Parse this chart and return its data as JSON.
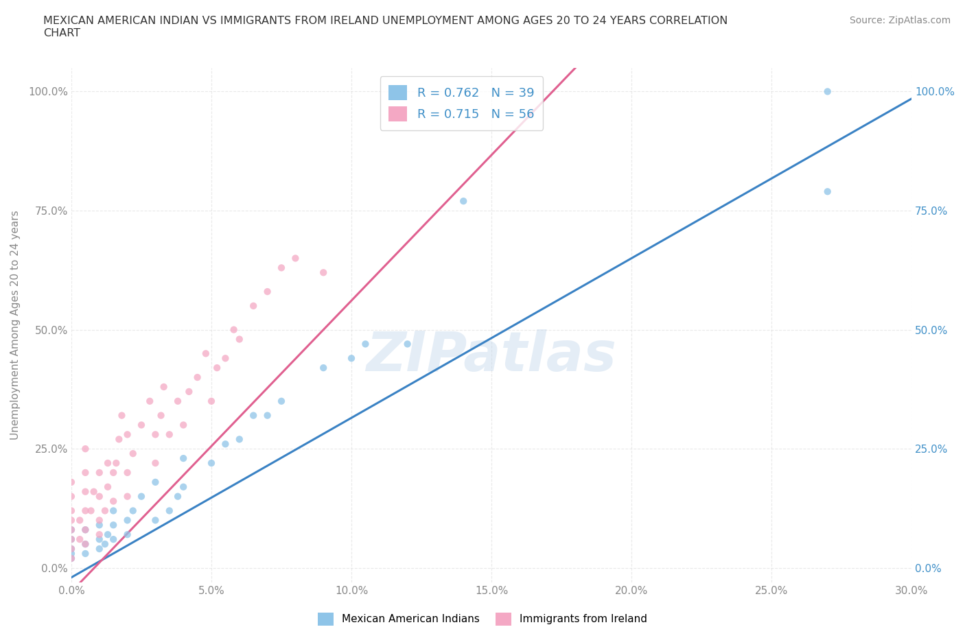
{
  "title": "MEXICAN AMERICAN INDIAN VS IMMIGRANTS FROM IRELAND UNEMPLOYMENT AMONG AGES 20 TO 24 YEARS CORRELATION\nCHART",
  "source": "Source: ZipAtlas.com",
  "ylabel": "Unemployment Among Ages 20 to 24 years",
  "xlim": [
    0.0,
    0.3
  ],
  "ylim": [
    -0.03,
    1.05
  ],
  "xtick_labels": [
    "0.0%",
    "5.0%",
    "10.0%",
    "15.0%",
    "20.0%",
    "25.0%",
    "30.0%"
  ],
  "xtick_vals": [
    0.0,
    0.05,
    0.1,
    0.15,
    0.2,
    0.25,
    0.3
  ],
  "ytick_labels": [
    "0.0%",
    "25.0%",
    "50.0%",
    "75.0%",
    "100.0%"
  ],
  "ytick_vals": [
    0.0,
    0.25,
    0.5,
    0.75,
    1.0
  ],
  "right_ytick_labels": [
    "0.0%",
    "25.0%",
    "50.0%",
    "75.0%",
    "100.0%"
  ],
  "right_ytick_vals": [
    0.0,
    0.25,
    0.5,
    0.75,
    1.0
  ],
  "legend_R1": "R = 0.762",
  "legend_N1": "N = 39",
  "legend_R2": "R = 0.715",
  "legend_N2": "N = 56",
  "color_blue": "#8ec4e8",
  "color_pink": "#f4a8c4",
  "line_blue": "#3a82c4",
  "line_pink": "#e06090",
  "watermark": "ZIPatlas",
  "legend_label1": "Mexican American Indians",
  "legend_label2": "Immigrants from Ireland",
  "scatter1_x": [
    0.0,
    0.0,
    0.0,
    0.0,
    0.0,
    0.005,
    0.005,
    0.005,
    0.01,
    0.01,
    0.01,
    0.012,
    0.013,
    0.015,
    0.015,
    0.015,
    0.02,
    0.02,
    0.022,
    0.025,
    0.03,
    0.03,
    0.035,
    0.038,
    0.04,
    0.04,
    0.05,
    0.055,
    0.06,
    0.065,
    0.07,
    0.075,
    0.09,
    0.1,
    0.105,
    0.12,
    0.14,
    0.27,
    0.27
  ],
  "scatter1_y": [
    0.02,
    0.03,
    0.04,
    0.06,
    0.08,
    0.03,
    0.05,
    0.08,
    0.04,
    0.06,
    0.09,
    0.05,
    0.07,
    0.06,
    0.09,
    0.12,
    0.07,
    0.1,
    0.12,
    0.15,
    0.1,
    0.18,
    0.12,
    0.15,
    0.17,
    0.23,
    0.22,
    0.26,
    0.27,
    0.32,
    0.32,
    0.35,
    0.42,
    0.44,
    0.47,
    0.47,
    0.77,
    0.79,
    1.0
  ],
  "scatter2_x": [
    0.0,
    0.0,
    0.0,
    0.0,
    0.0,
    0.0,
    0.0,
    0.0,
    0.003,
    0.003,
    0.005,
    0.005,
    0.005,
    0.005,
    0.005,
    0.005,
    0.007,
    0.008,
    0.01,
    0.01,
    0.01,
    0.01,
    0.012,
    0.013,
    0.013,
    0.015,
    0.015,
    0.016,
    0.017,
    0.018,
    0.02,
    0.02,
    0.02,
    0.022,
    0.025,
    0.028,
    0.03,
    0.03,
    0.032,
    0.033,
    0.035,
    0.038,
    0.04,
    0.042,
    0.045,
    0.048,
    0.05,
    0.052,
    0.055,
    0.058,
    0.06,
    0.065,
    0.07,
    0.075,
    0.08,
    0.09
  ],
  "scatter2_y": [
    0.02,
    0.04,
    0.06,
    0.08,
    0.1,
    0.12,
    0.15,
    0.18,
    0.06,
    0.1,
    0.05,
    0.08,
    0.12,
    0.16,
    0.2,
    0.25,
    0.12,
    0.16,
    0.07,
    0.1,
    0.15,
    0.2,
    0.12,
    0.17,
    0.22,
    0.14,
    0.2,
    0.22,
    0.27,
    0.32,
    0.15,
    0.2,
    0.28,
    0.24,
    0.3,
    0.35,
    0.22,
    0.28,
    0.32,
    0.38,
    0.28,
    0.35,
    0.3,
    0.37,
    0.4,
    0.45,
    0.35,
    0.42,
    0.44,
    0.5,
    0.48,
    0.55,
    0.58,
    0.63,
    0.65,
    0.62
  ],
  "fit1_x0": 0.0,
  "fit1_x1": 0.3,
  "fit1_y0": -0.02,
  "fit1_y1": 0.985,
  "fit2_x0": 0.0,
  "fit2_x1": 0.18,
  "fit2_y0": -0.05,
  "fit2_y1": 1.05,
  "background_color": "#ffffff",
  "grid_color": "#e0e0e0",
  "title_color": "#333333",
  "axis_color": "#888888",
  "right_label_color": "#4090c8"
}
